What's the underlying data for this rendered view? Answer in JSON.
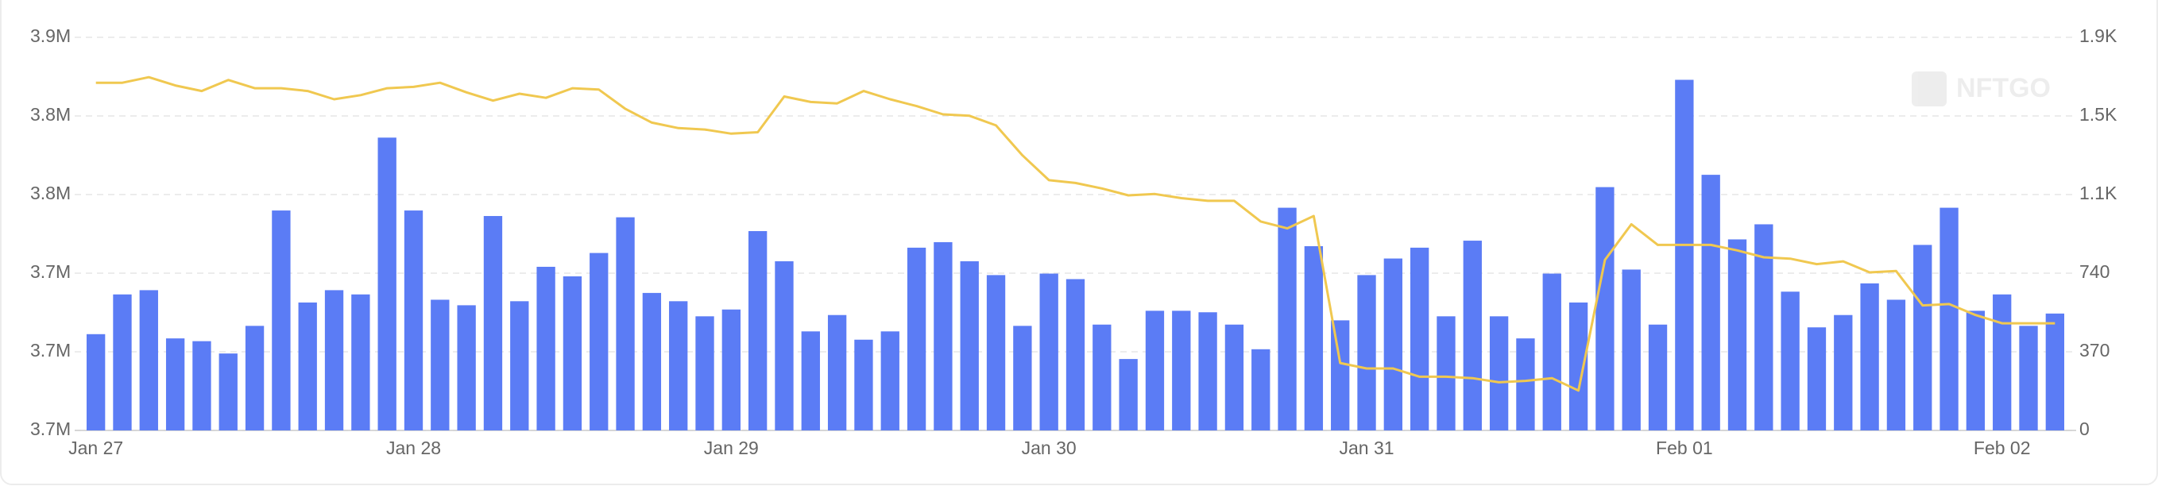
{
  "chart_data": {
    "type": "bar-line",
    "watermark": "NFTGO",
    "categories": [
      "Jan 27",
      null,
      null,
      null,
      null,
      null,
      null,
      null,
      null,
      null,
      null,
      null,
      "Jan 28",
      null,
      null,
      null,
      null,
      null,
      null,
      null,
      null,
      null,
      null,
      null,
      "Jan 29",
      null,
      null,
      null,
      null,
      null,
      null,
      null,
      null,
      null,
      null,
      null,
      "Jan 30",
      null,
      null,
      null,
      null,
      null,
      null,
      null,
      null,
      null,
      null,
      null,
      "Jan 31",
      null,
      null,
      null,
      null,
      null,
      null,
      null,
      null,
      null,
      null,
      null,
      "Feb 01",
      null,
      null,
      null,
      null,
      null,
      null,
      null,
      null,
      null,
      null,
      null,
      "Feb 02",
      null,
      null
    ],
    "series": [
      {
        "type": "bar",
        "axis": "y2",
        "color": "#5b7cf5",
        "values": [
          453,
          640,
          660,
          433,
          420,
          362,
          492,
          1035,
          602,
          660,
          640,
          1378,
          1035,
          615,
          589,
          1009,
          608,
          770,
          725,
          835,
          1003,
          647,
          608,
          537,
          569,
          938,
          796,
          466,
          543,
          427,
          466,
          860,
          886,
          796,
          731,
          492,
          738,
          712,
          498,
          336,
          563,
          563,
          556,
          498,
          382,
          1048,
          867,
          518,
          731,
          809,
          860,
          537,
          893,
          537,
          433,
          738,
          602,
          1145,
          757,
          498,
          1650,
          1203,
          899,
          970,
          653,
          485,
          543,
          692,
          615,
          873,
          1048,
          563,
          640,
          492,
          550
        ]
      },
      {
        "type": "line",
        "axis": "y",
        "color": "#f0c850",
        "values": [
          3836900,
          3836900,
          3839700,
          3835500,
          3832700,
          3838300,
          3834100,
          3834100,
          3832700,
          3828500,
          3830600,
          3834100,
          3834800,
          3836900,
          3832000,
          3827800,
          3831300,
          3829200,
          3834100,
          3833400,
          3823600,
          3816600,
          3813800,
          3813100,
          3811000,
          3811700,
          3829900,
          3827100,
          3826400,
          3832700,
          3828500,
          3825000,
          3820800,
          3820100,
          3815200,
          3799900,
          3787300,
          3785900,
          3783100,
          3779600,
          3780300,
          3778200,
          3776800,
          3776800,
          3766300,
          3762800,
          3769100,
          3694300,
          3691500,
          3691500,
          3687300,
          3687300,
          3686600,
          3684500,
          3685200,
          3686600,
          3680300,
          3746700,
          3764900,
          3754400,
          3754400,
          3754400,
          3751600,
          3748100,
          3747400,
          3744600,
          3746000,
          3740400,
          3741100,
          3723600,
          3724300,
          3718700,
          3714500,
          3714500,
          3714500
        ]
      }
    ],
    "ylim": [
      3660000,
      3860000
    ],
    "yticks": [
      {
        "value": 3660000,
        "label": "3.7M"
      },
      {
        "value": 3700000,
        "label": "3.7M"
      },
      {
        "value": 3740000,
        "label": "3.7M"
      },
      {
        "value": 3780000,
        "label": "3.8M"
      },
      {
        "value": 3820000,
        "label": "3.8M"
      },
      {
        "value": 3860000,
        "label": "3.9M"
      }
    ],
    "y2lim": [
      0,
      1850
    ],
    "y2ticks": [
      0,
      370,
      740,
      {
        "value": 1110,
        "label": "1.1K"
      },
      {
        "value": 1480,
        "label": "1.5K"
      },
      {
        "value": 1850,
        "label": "1.9K"
      }
    ],
    "grid": true
  }
}
